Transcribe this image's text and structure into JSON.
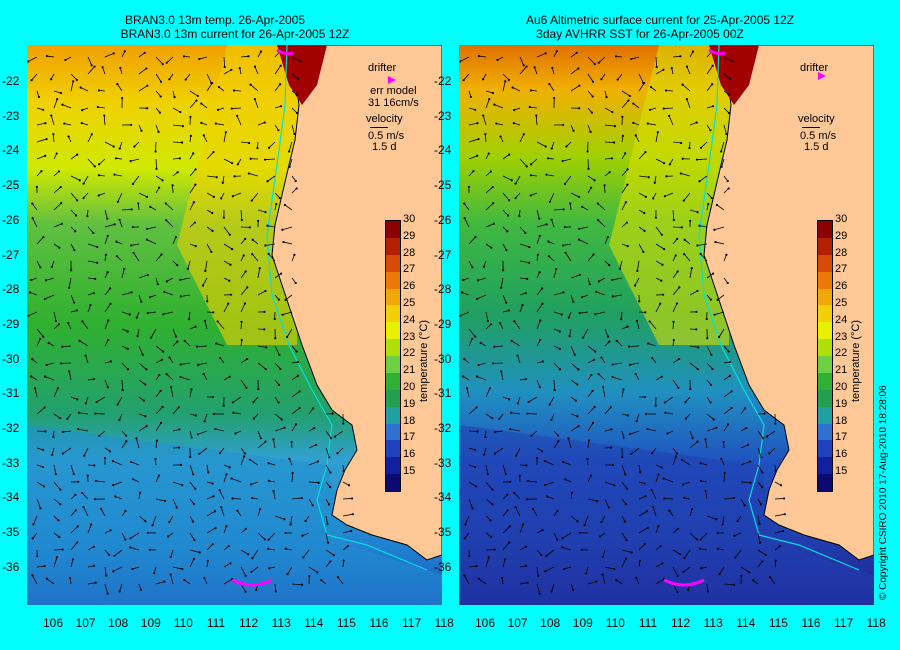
{
  "left_panel": {
    "title_line1": "BRAN3.0 13m temp. 26-Apr-2005",
    "title_line2": "BRAN3.0 13m current for 26-Apr-2005 12Z",
    "legend_drifter": "drifter",
    "legend_err_line1": "err model",
    "legend_err_line2": "31 16cm/s",
    "legend_velocity": "velocity",
    "legend_speed": "0.5 m/s",
    "legend_days": "1.5 d"
  },
  "right_panel": {
    "title_line1": "Au6 Altimetric surface current for 25-Apr-2005 12Z",
    "title_line2": "3day AVHRR SST for 26-Apr-2005 00Z",
    "legend_drifter": "drifter",
    "legend_velocity": "velocity",
    "legend_speed": "0.5 m/s",
    "legend_days": "1.5 d"
  },
  "axes": {
    "latitudes": [
      "-22",
      "-23",
      "-24",
      "-25",
      "-26",
      "-27",
      "-28",
      "-29",
      "-30",
      "-31",
      "-32",
      "-33",
      "-34",
      "-35",
      "-36"
    ],
    "longitudes": [
      "106",
      "107",
      "108",
      "109",
      "110",
      "111",
      "112",
      "113",
      "114",
      "115",
      "116",
      "117",
      "118"
    ]
  },
  "colorbar": {
    "ticks": [
      "30",
      "29",
      "28",
      "27",
      "26",
      "25",
      "24",
      "23",
      "22",
      "21",
      "20",
      "19",
      "18",
      "17",
      "16",
      "15"
    ],
    "unit_label": "temperature (°C)",
    "colors": [
      "#8b0000",
      "#b22200",
      "#d84a00",
      "#ec7a00",
      "#f2a800",
      "#f2d000",
      "#e8f000",
      "#b0e000",
      "#6cd040",
      "#30b030",
      "#22a050",
      "#20a0a0",
      "#3070d0",
      "#2040c0",
      "#1020a0",
      "#0a0a70"
    ]
  },
  "copyright": "© Copyright CSIRO 2010   17-Aug-2010 18:28:06",
  "colors": {
    "background": "#00ffff",
    "land": "#ffc896",
    "drifter": "#ff00ff"
  }
}
